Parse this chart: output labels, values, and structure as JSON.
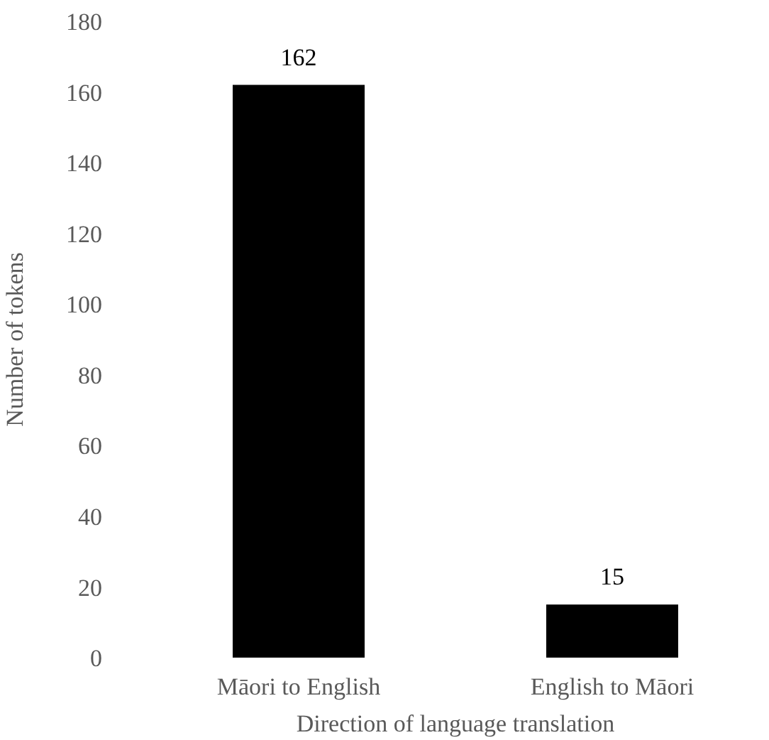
{
  "chart_data": {
    "type": "bar",
    "xlabel": "Direction of language translation",
    "ylabel": "Number of tokens",
    "categories": [
      "Māori to English",
      "English to Māori"
    ],
    "values": [
      162,
      15
    ],
    "color": "#000000",
    "ylim": [
      0,
      180
    ],
    "yticks": [
      0,
      20,
      40,
      60,
      80,
      100,
      120,
      140,
      160,
      180
    ],
    "grid": false,
    "data_labels": true,
    "legend": false
  }
}
